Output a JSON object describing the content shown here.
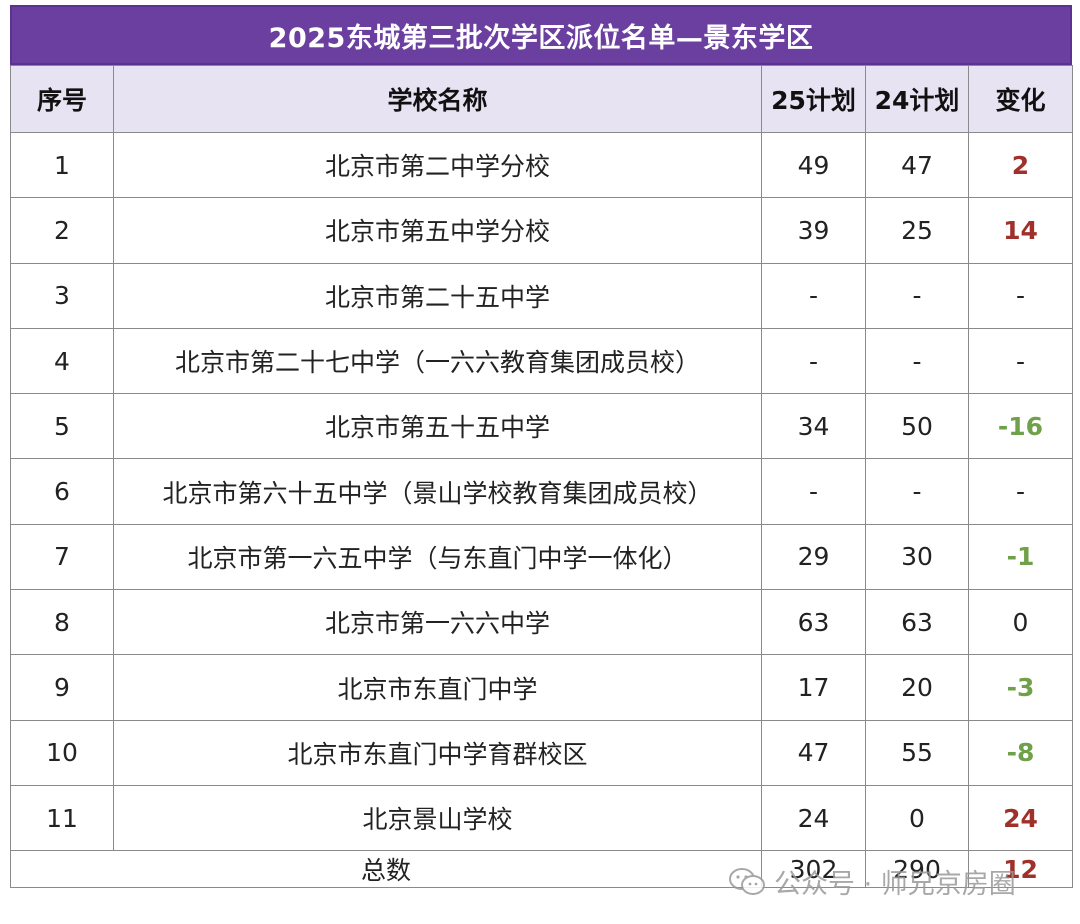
{
  "title": "2025东城第三批次学区派位名单—景东学区",
  "headers": [
    "序号",
    "学校名称",
    "25计划",
    "24计划",
    "变化"
  ],
  "rows": [
    {
      "no": "1",
      "name": "北京市第二中学分校",
      "p25": "49",
      "p24": "47",
      "change": "2",
      "trend": "up"
    },
    {
      "no": "2",
      "name": "北京市第五中学分校",
      "p25": "39",
      "p24": "25",
      "change": "14",
      "trend": "up"
    },
    {
      "no": "3",
      "name": "北京市第二十五中学",
      "p25": "-",
      "p24": "-",
      "change": "-",
      "trend": "none"
    },
    {
      "no": "4",
      "name": "北京市第二十七中学（一六六教育集团成员校）",
      "p25": "-",
      "p24": "-",
      "change": "-",
      "trend": "none"
    },
    {
      "no": "5",
      "name": "北京市第五十五中学",
      "p25": "34",
      "p24": "50",
      "change": "-16",
      "trend": "down"
    },
    {
      "no": "6",
      "name": "北京市第六十五中学（景山学校教育集团成员校）",
      "p25": "-",
      "p24": "-",
      "change": "-",
      "trend": "none"
    },
    {
      "no": "7",
      "name": "北京市第一六五中学（与东直门中学一体化）",
      "p25": "29",
      "p24": "30",
      "change": "-1",
      "trend": "down"
    },
    {
      "no": "8",
      "name": "北京市第一六六中学",
      "p25": "63",
      "p24": "63",
      "change": "0",
      "trend": "none"
    },
    {
      "no": "9",
      "name": "北京市东直门中学",
      "p25": "17",
      "p24": "20",
      "change": "-3",
      "trend": "down"
    },
    {
      "no": "10",
      "name": "北京市东直门中学育群校区",
      "p25": "47",
      "p24": "55",
      "change": "-8",
      "trend": "down"
    },
    {
      "no": "11",
      "name": "北京景山学校",
      "p25": "24",
      "p24": "0",
      "change": "24",
      "trend": "up"
    }
  ],
  "total": {
    "label": "总数",
    "p25": "302",
    "p24": "290",
    "change": "12"
  },
  "watermark": "公众号 · 师兄京房圈",
  "colors": {
    "title_bg": "#6b3fa0",
    "header_bg": "#e8e3f3",
    "up": "#a0302a",
    "down": "#6fa04a"
  }
}
